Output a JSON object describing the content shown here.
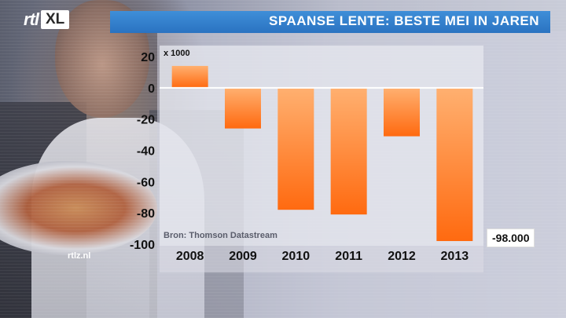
{
  "branding": {
    "logo_text": "rtl",
    "logo_badge": "XL",
    "watermark": "rtlz.nl"
  },
  "chart_data": {
    "type": "bar",
    "title": "SPAANSE LENTE: BESTE MEI IN JAREN",
    "unit_label": "x 1000",
    "categories": [
      "2008",
      "2009",
      "2010",
      "2011",
      "2012",
      "2013"
    ],
    "values": [
      14,
      -26,
      -78,
      -81,
      -31,
      -98
    ],
    "ylim": [
      -100,
      20
    ],
    "yticks": [
      20,
      0,
      -20,
      -40,
      -60,
      -80,
      -100
    ],
    "source": "Bron: Thomson Datastream",
    "annotation": "-98.000",
    "colors": {
      "bar_top": "#ffb070",
      "bar_bottom": "#ff6a10",
      "panel": "#e7e8ef",
      "axis": "#ffffff"
    }
  }
}
